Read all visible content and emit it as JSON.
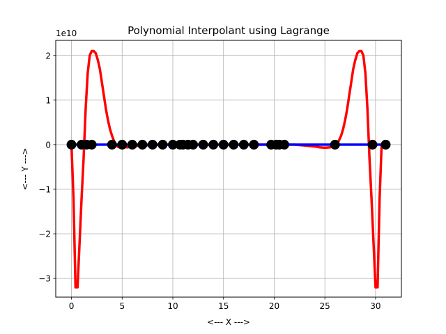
{
  "chart_data": {
    "type": "line",
    "title": "Polynomial Interpolant using Lagrange",
    "xlabel": "<--- X --->",
    "ylabel": "<--- Y --->",
    "y_offset_label": "1e10",
    "xlim": [
      -1.55,
      32.55
    ],
    "ylim": [
      -3.42,
      2.34
    ],
    "grid": true,
    "x_ticks": [
      0,
      5,
      10,
      15,
      20,
      25,
      30
    ],
    "x_tick_labels": [
      "0",
      "5",
      "10",
      "15",
      "20",
      "25",
      "30"
    ],
    "y_ticks": [
      -3,
      -2,
      -1,
      0,
      1,
      2
    ],
    "y_tick_labels": [
      "−3",
      "−2",
      "−1",
      "0",
      "1",
      "2"
    ],
    "series": [
      {
        "role": "lagrange-interpolant",
        "color": "#ff0000",
        "x": [
          0,
          0.2,
          0.4,
          0.6,
          0.8,
          1.0,
          1.2,
          1.4,
          1.6,
          1.8,
          2.0,
          2.2,
          2.4,
          2.6,
          2.8,
          3.0,
          3.2,
          3.4,
          3.6,
          3.8,
          4.0,
          4.2,
          4.4,
          4.6,
          4.8,
          5.0,
          5.5,
          6.0,
          7.0,
          8.0,
          9.0,
          10.0,
          12.0,
          14.0,
          16.0,
          18.0,
          20.0,
          22.0,
          23.0,
          24.0,
          24.5,
          25.0,
          25.5,
          26.0,
          26.2,
          26.4,
          26.6,
          26.8,
          27.0,
          27.2,
          27.4,
          27.6,
          27.8,
          28.0,
          28.2,
          28.4,
          28.6,
          28.8,
          29.0,
          29.2,
          29.4,
          29.6,
          29.8,
          30.0,
          30.2,
          30.4,
          30.6,
          30.8,
          31.0
        ],
        "y": [
          0,
          -1.2,
          -3.2,
          -3.2,
          -2.2,
          -1.2,
          -0.3,
          0.8,
          1.6,
          2.0,
          2.1,
          2.1,
          2.05,
          1.9,
          1.7,
          1.4,
          1.1,
          0.8,
          0.55,
          0.35,
          0.2,
          0.08,
          0.0,
          -0.05,
          -0.06,
          -0.05,
          -0.06,
          -0.04,
          -0.02,
          -0.01,
          0.0,
          0.0,
          0.0,
          0.0,
          0.0,
          0.0,
          0.0,
          0.0,
          -0.02,
          -0.04,
          -0.06,
          -0.07,
          -0.06,
          -0.03,
          0.0,
          0.1,
          0.2,
          0.35,
          0.55,
          0.8,
          1.1,
          1.4,
          1.7,
          1.9,
          2.05,
          2.1,
          2.1,
          2.0,
          1.6,
          0.8,
          -0.3,
          -1.2,
          -2.2,
          -3.2,
          -3.2,
          -1.2,
          0,
          0,
          0
        ]
      },
      {
        "role": "fitted-line",
        "color": "#0000ff",
        "x": [
          0,
          31
        ],
        "y": [
          0,
          0
        ]
      },
      {
        "role": "data-points",
        "color": "#000000",
        "x": [
          0,
          1,
          1.5,
          2,
          4,
          5,
          6,
          7,
          8,
          9,
          10,
          10.7,
          11,
          11.5,
          12,
          13,
          14,
          15,
          16,
          17,
          18,
          19.7,
          20.2,
          20.5,
          21,
          26,
          29.7,
          31
        ],
        "y": [
          0,
          0,
          0,
          0,
          0,
          0,
          0,
          0,
          0,
          0,
          0,
          0,
          0,
          0,
          0,
          0,
          0,
          0,
          0,
          0,
          0,
          0,
          0,
          0,
          0,
          0,
          0,
          0
        ]
      }
    ]
  }
}
